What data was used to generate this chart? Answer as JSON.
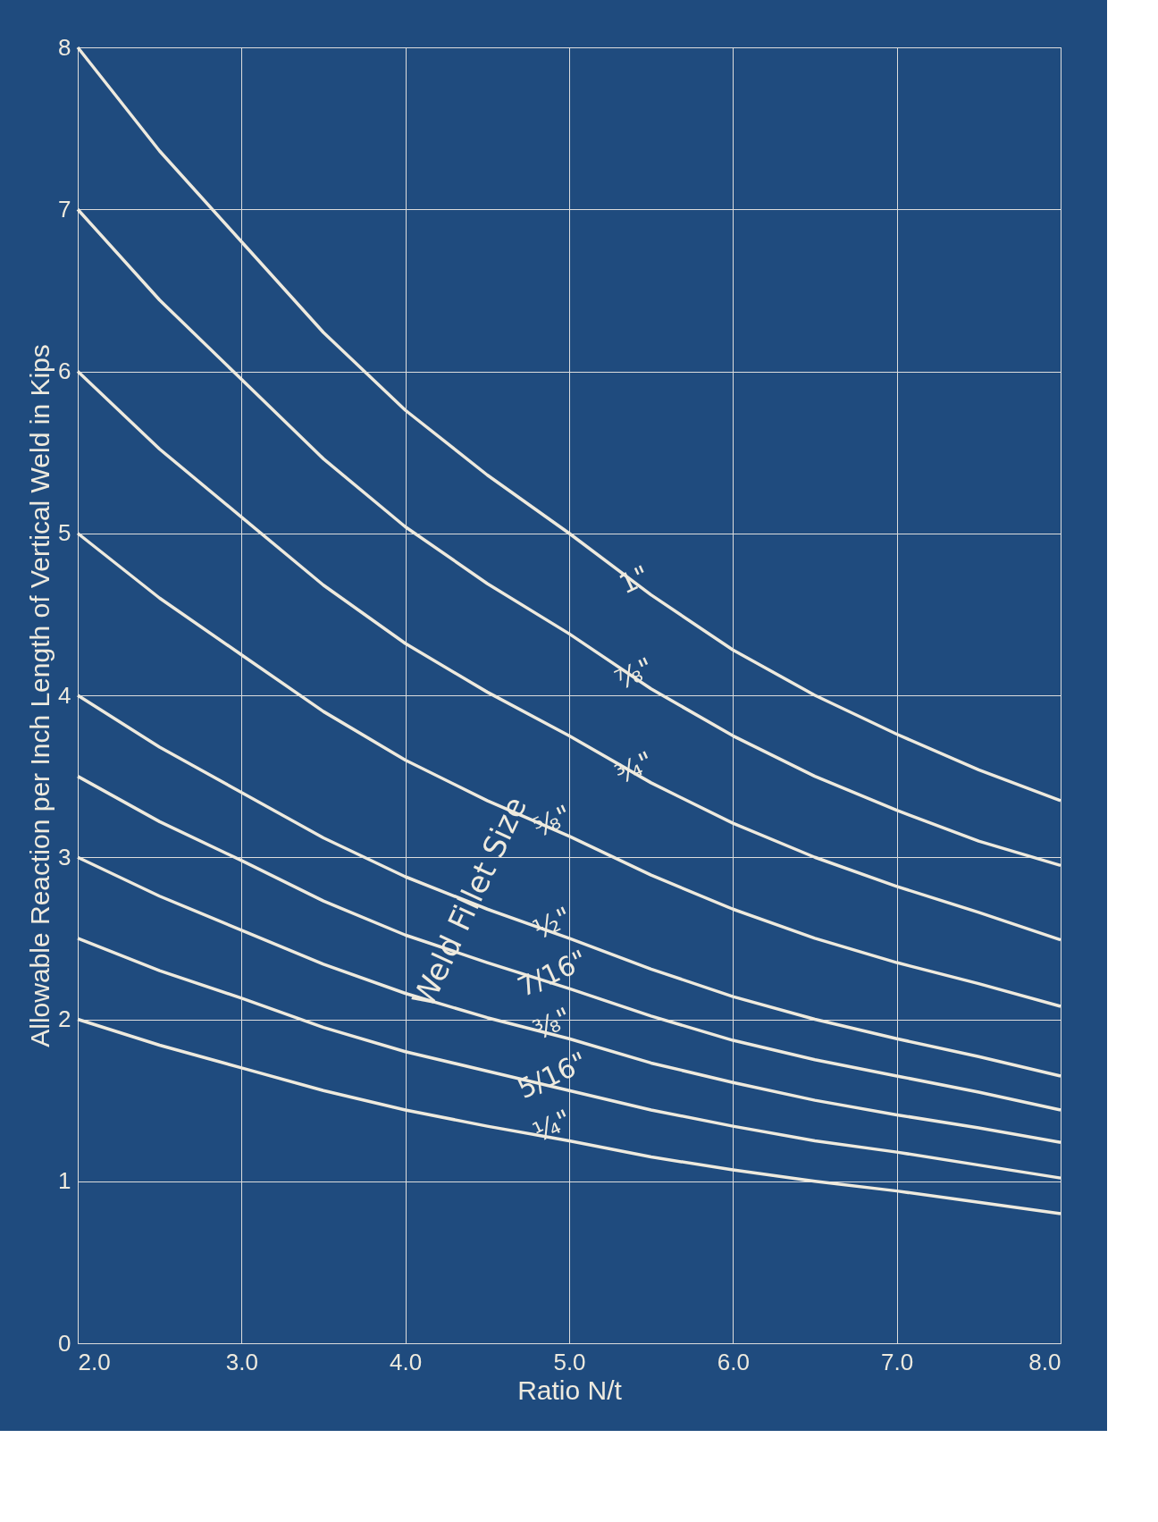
{
  "chart_data": {
    "type": "line",
    "xlabel": "Ratio N/t",
    "ylabel": "Allowable Reaction per Inch Length of Vertical Weld in Kips",
    "x": [
      2,
      2.5,
      3,
      3.5,
      4,
      4.5,
      5,
      5.5,
      6,
      6.5,
      7,
      7.5,
      8
    ],
    "series": [
      {
        "name": "1\"",
        "color": "#eeeade",
        "values": [
          8,
          7.36,
          6.8,
          6.24,
          5.76,
          5.36,
          5.0,
          4.62,
          4.28,
          4.0,
          3.76,
          3.54,
          3.35
        ]
      },
      {
        "name": "⅞\"",
        "color": "#eeeade",
        "values": [
          7,
          6.44,
          5.95,
          5.46,
          5.04,
          4.69,
          4.38,
          4.04,
          3.75,
          3.5,
          3.29,
          3.1,
          2.95
        ]
      },
      {
        "name": "¾\"",
        "color": "#eeeade",
        "values": [
          6,
          5.52,
          5.1,
          4.68,
          4.32,
          4.02,
          3.75,
          3.46,
          3.21,
          3.0,
          2.82,
          2.66,
          2.49
        ]
      },
      {
        "name": "⅝\"",
        "color": "#eeeade",
        "values": [
          5,
          4.6,
          4.25,
          3.9,
          3.6,
          3.35,
          3.13,
          2.89,
          2.68,
          2.5,
          2.35,
          2.22,
          2.08
        ]
      },
      {
        "name": "½\"",
        "color": "#eeeade",
        "values": [
          4,
          3.68,
          3.4,
          3.12,
          2.88,
          2.68,
          2.5,
          2.31,
          2.14,
          2.0,
          1.88,
          1.77,
          1.65
        ]
      },
      {
        "name": "7/16\"",
        "color": "#eeeade",
        "values": [
          3.5,
          3.22,
          2.98,
          2.73,
          2.52,
          2.35,
          2.19,
          2.02,
          1.87,
          1.75,
          1.65,
          1.55,
          1.44
        ]
      },
      {
        "name": "⅜\"",
        "color": "#eeeade",
        "values": [
          3,
          2.76,
          2.55,
          2.34,
          2.16,
          2.01,
          1.88,
          1.73,
          1.61,
          1.5,
          1.41,
          1.33,
          1.24
        ]
      },
      {
        "name": "5/16\"",
        "color": "#eeeade",
        "values": [
          2.5,
          2.3,
          2.13,
          1.95,
          1.8,
          1.68,
          1.56,
          1.44,
          1.34,
          1.25,
          1.18,
          1.1,
          1.02
        ]
      },
      {
        "name": "¼\"",
        "color": "#eeeade",
        "values": [
          2,
          1.84,
          1.7,
          1.56,
          1.44,
          1.34,
          1.25,
          1.15,
          1.07,
          1.0,
          0.94,
          0.87,
          0.8
        ]
      }
    ],
    "annotations": [
      "Weld Fillet Size"
    ],
    "xlim": [
      2,
      8
    ],
    "ylim": [
      0,
      8
    ],
    "xticks": [
      {
        "value": 2,
        "label": "2.0"
      },
      {
        "value": 3,
        "label": "3.0"
      },
      {
        "value": 4,
        "label": "4.0"
      },
      {
        "value": 5,
        "label": "5.0"
      },
      {
        "value": 6,
        "label": "6.0"
      },
      {
        "value": 7,
        "label": "7.0"
      },
      {
        "value": 8,
        "label": "8.0"
      }
    ],
    "yticks": [
      0,
      1,
      2,
      3,
      4,
      5,
      6,
      7,
      8
    ],
    "grid": true,
    "legend": false,
    "marker": "none",
    "line_style": "solid"
  }
}
